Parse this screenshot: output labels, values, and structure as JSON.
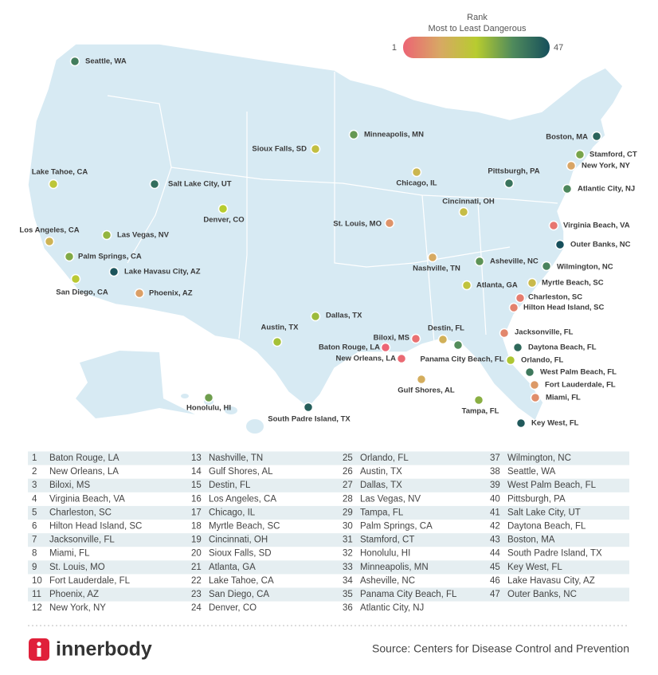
{
  "legend": {
    "title": "Rank",
    "subtitle": "Most to Least Dangerous",
    "min": 1,
    "max": 47,
    "colors": [
      "#ec6474",
      "#d8a864",
      "#b7cc2f",
      "#4f8a5c",
      "#164f5b"
    ]
  },
  "cities": [
    {
      "rank": 1,
      "name": "Baton Rouge, LA"
    },
    {
      "rank": 2,
      "name": "New Orleans, LA"
    },
    {
      "rank": 3,
      "name": "Biloxi, MS"
    },
    {
      "rank": 4,
      "name": "Virginia Beach, VA"
    },
    {
      "rank": 5,
      "name": "Charleston, SC"
    },
    {
      "rank": 6,
      "name": "Hilton Head Island, SC"
    },
    {
      "rank": 7,
      "name": "Jacksonville, FL"
    },
    {
      "rank": 8,
      "name": "Miami, FL"
    },
    {
      "rank": 9,
      "name": "St. Louis, MO"
    },
    {
      "rank": 10,
      "name": "Fort Lauderdale, FL"
    },
    {
      "rank": 11,
      "name": "Phoenix, AZ"
    },
    {
      "rank": 12,
      "name": "New York, NY"
    },
    {
      "rank": 13,
      "name": "Nashville, TN"
    },
    {
      "rank": 14,
      "name": "Gulf Shores, AL"
    },
    {
      "rank": 15,
      "name": "Destin, FL"
    },
    {
      "rank": 16,
      "name": "Los Angeles, CA"
    },
    {
      "rank": 17,
      "name": "Chicago, IL"
    },
    {
      "rank": 18,
      "name": "Myrtle Beach, SC"
    },
    {
      "rank": 19,
      "name": "Cincinnati, OH"
    },
    {
      "rank": 20,
      "name": "Sioux Falls, SD"
    },
    {
      "rank": 21,
      "name": "Atlanta, GA"
    },
    {
      "rank": 22,
      "name": "Lake Tahoe, CA"
    },
    {
      "rank": 23,
      "name": "San Diego, CA"
    },
    {
      "rank": 24,
      "name": "Denver, CO"
    },
    {
      "rank": 25,
      "name": "Orlando, FL"
    },
    {
      "rank": 26,
      "name": "Austin, TX"
    },
    {
      "rank": 27,
      "name": "Dallas, TX"
    },
    {
      "rank": 28,
      "name": "Las Vegas, NV"
    },
    {
      "rank": 29,
      "name": "Tampa, FL"
    },
    {
      "rank": 30,
      "name": "Palm Springs, CA"
    },
    {
      "rank": 31,
      "name": "Stamford, CT"
    },
    {
      "rank": 32,
      "name": "Honolulu, HI"
    },
    {
      "rank": 33,
      "name": "Minneapolis, MN"
    },
    {
      "rank": 34,
      "name": "Asheville, NC"
    },
    {
      "rank": 35,
      "name": "Panama City Beach, FL"
    },
    {
      "rank": 36,
      "name": "Atlantic City, NJ"
    },
    {
      "rank": 37,
      "name": "Wilmington, NC"
    },
    {
      "rank": 38,
      "name": "Seattle, WA"
    },
    {
      "rank": 39,
      "name": "West Palm Beach, FL"
    },
    {
      "rank": 40,
      "name": "Pittsburgh, PA"
    },
    {
      "rank": 41,
      "name": "Salt Lake City, UT"
    },
    {
      "rank": 42,
      "name": "Daytona Beach, FL"
    },
    {
      "rank": 43,
      "name": "Boston, MA"
    },
    {
      "rank": 44,
      "name": "South Padre Island, TX"
    },
    {
      "rank": 45,
      "name": "Key West, FL"
    },
    {
      "rank": 46,
      "name": "Lake Havasu City, AZ"
    },
    {
      "rank": 47,
      "name": "Outer Banks, NC"
    }
  ],
  "footer": {
    "brand": "innerbody",
    "source": "Source: Centers for Disease Control and Prevention"
  }
}
